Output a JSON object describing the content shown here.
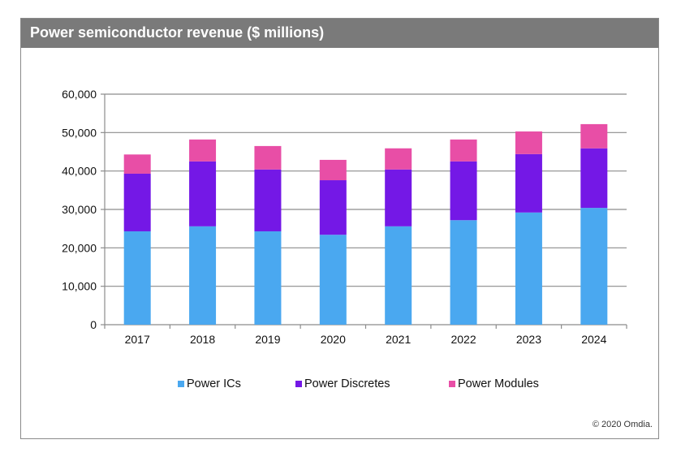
{
  "chart_data": {
    "type": "bar",
    "stacked": true,
    "title": "Power semiconductor revenue ($ millions)",
    "xlabel": "",
    "ylabel": "",
    "ylim": [
      0,
      60000
    ],
    "yticks": [
      0,
      10000,
      20000,
      30000,
      40000,
      50000,
      60000
    ],
    "ytick_labels": [
      "0",
      "10,000",
      "20,000",
      "30,000",
      "40,000",
      "50,000",
      "60,000"
    ],
    "grid": true,
    "legend_position": "bottom",
    "categories": [
      "2017",
      "2018",
      "2019",
      "2020",
      "2021",
      "2022",
      "2023",
      "2024"
    ],
    "series": [
      {
        "name": "Power ICs",
        "color": "#4aa8f0",
        "values": [
          24300,
          25600,
          24300,
          23400,
          25600,
          27200,
          29200,
          30400
        ]
      },
      {
        "name": "Power Discretes",
        "color": "#7418e6",
        "values": [
          15000,
          16900,
          16100,
          14200,
          14800,
          15300,
          15200,
          15500
        ]
      },
      {
        "name": "Power Modules",
        "color": "#e84ea6",
        "values": [
          5000,
          5700,
          6100,
          5300,
          5500,
          5700,
          5900,
          6300
        ]
      }
    ],
    "annotations": [
      "© 2020 Omdia."
    ]
  },
  "header": {
    "title": "Power semiconductor revenue ($ millions)"
  },
  "legend": {
    "items": [
      "Power ICs",
      "Power Discretes",
      "Power Modules"
    ]
  },
  "footer": {
    "credit": "© 2020 Omdia."
  }
}
